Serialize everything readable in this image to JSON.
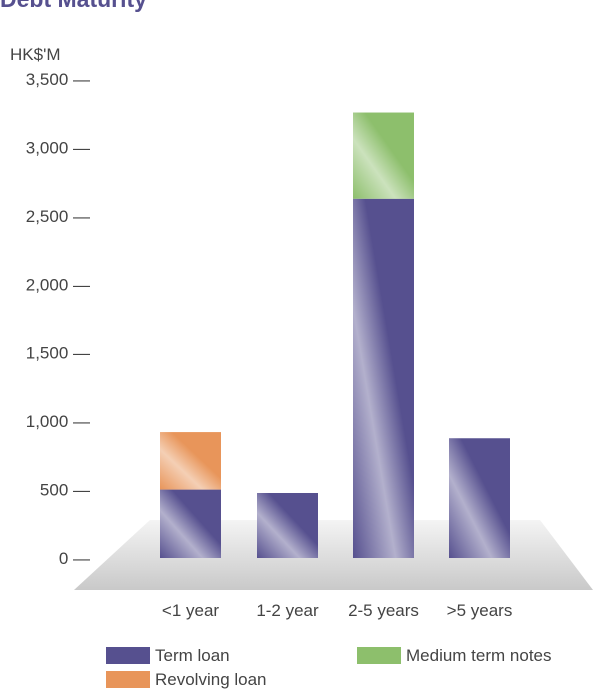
{
  "chart_data": {
    "type": "bar",
    "title": "Debt Maturity",
    "ylabel": "HK$'M",
    "ylim": [
      0,
      3500
    ],
    "yticks": [
      "3,500 —",
      "3,000 —",
      "2,500 —",
      "2,000 —",
      "1,500 —",
      "1,000 —",
      "500 —",
      "0 —"
    ],
    "ytick_values": [
      3500,
      3000,
      2500,
      2000,
      1500,
      1000,
      500,
      0
    ],
    "categories": [
      "<1 year",
      "1-2 year",
      "2-5 years",
      ">5 years"
    ],
    "stacked": true,
    "series": [
      {
        "name": "Term loan",
        "color": "#56508f",
        "values": [
          500,
          475,
          2625,
          875
        ]
      },
      {
        "name": "Revolving loan",
        "color": "#e8955a",
        "values": [
          420,
          0,
          0,
          0
        ]
      },
      {
        "name": "Medium term notes",
        "color": "#8dbf6c",
        "values": [
          0,
          0,
          630,
          0
        ]
      }
    ],
    "grid": false,
    "legend_position": "bottom"
  }
}
